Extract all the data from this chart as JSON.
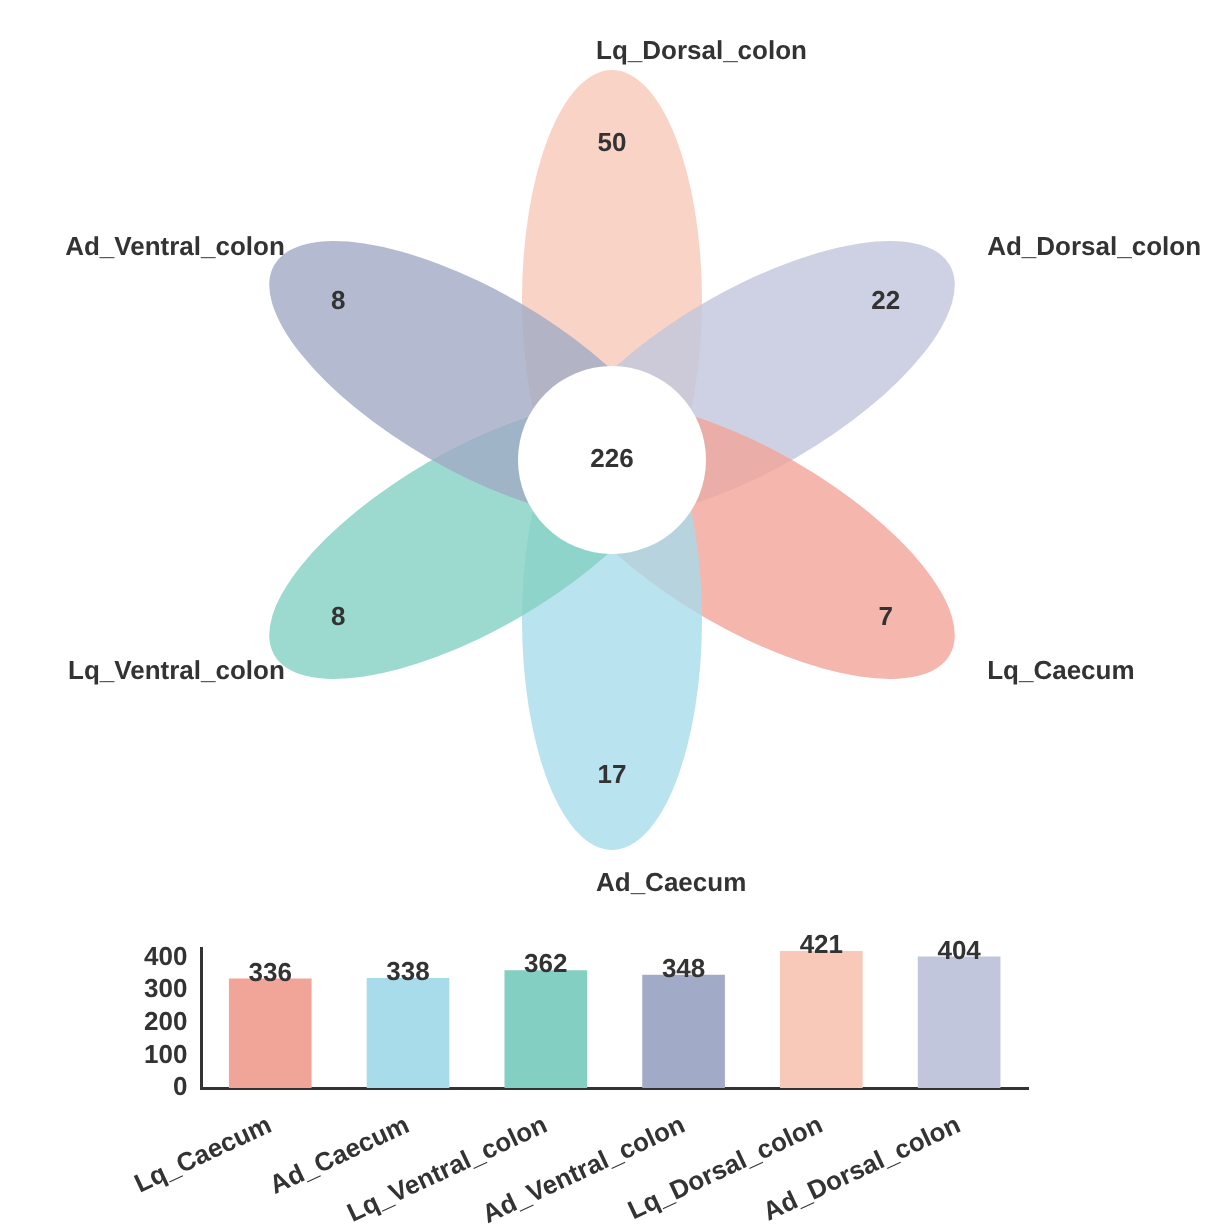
{
  "chart_data": [
    {
      "type": "other",
      "categories": [
        "Lq_Dorsal_colon",
        "Ad_Dorsal_colon",
        "Lq_Caecum",
        "Ad_Caecum",
        "Lq_Ventral_colon",
        "Ad_Ventral_colon"
      ],
      "values": [
        50,
        22,
        7,
        17,
        8,
        8
      ],
      "colors": [
        "#f8c9b8",
        "#c1c6dc",
        "#f1a498",
        "#a8dcea",
        "#83d0c2",
        "#a1aac6"
      ],
      "data_labels": true,
      "annotations": [
        "226"
      ]
    },
    {
      "type": "bar",
      "categories": [
        "Lq_Caecum",
        "Ad_Caecum",
        "Lq_Ventral_colon",
        "Ad_Ventral_colon",
        "Lq_Dorsal_colon",
        "Ad_Dorsal_colon"
      ],
      "values": [
        336,
        338,
        362,
        348,
        421,
        404
      ],
      "colors": [
        "#f1a498",
        "#a8dcea",
        "#83d0c2",
        "#a1aac6",
        "#f8c9b8",
        "#c1c6dc"
      ],
      "ylim": [
        0,
        430
      ],
      "yticks": [
        0,
        100,
        200,
        300,
        400
      ],
      "data_labels": true
    }
  ]
}
